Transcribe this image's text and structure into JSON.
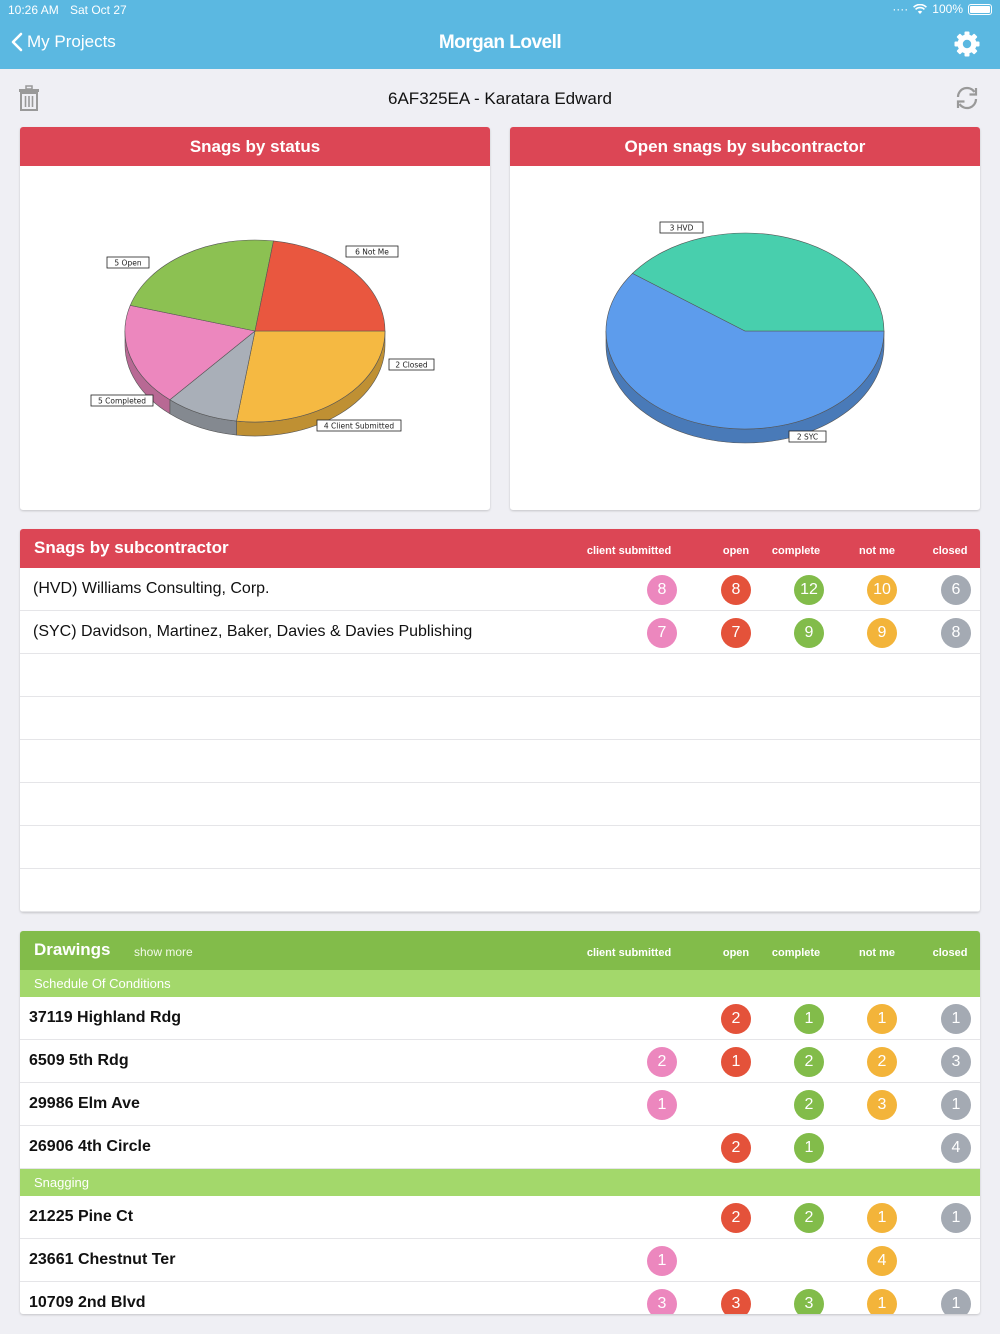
{
  "status_bar": {
    "time": "10:26 AM",
    "date": "Sat Oct 27",
    "battery": "100%"
  },
  "nav": {
    "back_label": "My Projects",
    "brand": "Morgan Lovell"
  },
  "page": {
    "title": "6AF325EA - Karatara Edward"
  },
  "colors": {
    "header_blue": "#5bb8e1",
    "card_red": "#dc4655",
    "drawings_green": "#82bc4a",
    "section_green": "#a3d86b",
    "client_submitted": "#ec87be",
    "open": "#e4523a",
    "complete": "#82bc4a",
    "not_me": "#f3b43a",
    "closed": "#a4aab3"
  },
  "icons": {
    "back": "chevron-left-icon",
    "settings": "gear-icon",
    "delete": "trash-icon",
    "refresh": "sync-icon"
  },
  "chart_data": [
    {
      "type": "pie",
      "title": "Snags by status",
      "slices": [
        {
          "label": "Not Me",
          "value": 6,
          "color": "#f5b942"
        },
        {
          "label": "Closed",
          "value": 2,
          "color": "#a9afb8"
        },
        {
          "label": "Client Submitted",
          "value": 4,
          "color": "#ec87be"
        },
        {
          "label": "Completed",
          "value": 5,
          "color": "#8cc152"
        },
        {
          "label": "Open",
          "value": 5,
          "color": "#e9573f"
        }
      ],
      "data_labels": [
        "6 Not Me",
        "2 Closed",
        "4 Client Submitted",
        "5 Completed",
        "5 Open"
      ]
    },
    {
      "type": "pie",
      "title": "Open snags by subcontractor",
      "slices": [
        {
          "label": "HVD",
          "value": 3,
          "color": "#5d9cec"
        },
        {
          "label": "SYC",
          "value": 2,
          "color": "#48cfad"
        }
      ],
      "data_labels": [
        "3 HVD",
        "2 SYC"
      ]
    }
  ],
  "subcontractors": {
    "title": "Snags by subcontractor",
    "columns": [
      "client submitted",
      "open",
      "complete",
      "not me",
      "closed"
    ],
    "rows": [
      {
        "name": "(HVD) Williams Consulting, Corp.",
        "counts": [
          "8",
          "8",
          "12",
          "10",
          "6"
        ]
      },
      {
        "name": "(SYC) Davidson, Martinez, Baker, Davies & Davies Publishing",
        "counts": [
          "7",
          "7",
          "9",
          "9",
          "8"
        ]
      }
    ]
  },
  "drawings": {
    "title": "Drawings",
    "show_more": "show more",
    "columns": [
      "client submitted",
      "open",
      "complete",
      "not me",
      "closed"
    ],
    "sections": [
      {
        "name": "Schedule Of Conditions",
        "rows": [
          {
            "name": "37119 Highland Rdg",
            "counts": [
              "",
              "2",
              "1",
              "1",
              "1"
            ]
          },
          {
            "name": "6509 5th Rdg",
            "counts": [
              "2",
              "1",
              "2",
              "2",
              "3"
            ]
          },
          {
            "name": "29986 Elm Ave",
            "counts": [
              "1",
              "",
              "2",
              "3",
              "1"
            ]
          },
          {
            "name": "26906 4th Circle",
            "counts": [
              "",
              "2",
              "1",
              "",
              "4"
            ]
          }
        ]
      },
      {
        "name": "Snagging",
        "rows": [
          {
            "name": "21225 Pine Ct",
            "counts": [
              "",
              "2",
              "2",
              "1",
              "1"
            ]
          },
          {
            "name": "23661 Chestnut Ter",
            "counts": [
              "1",
              "",
              "",
              "4",
              ""
            ]
          },
          {
            "name": "10709 2nd Blvd",
            "counts": [
              "3",
              "3",
              "3",
              "1",
              "1"
            ]
          }
        ]
      }
    ]
  }
}
